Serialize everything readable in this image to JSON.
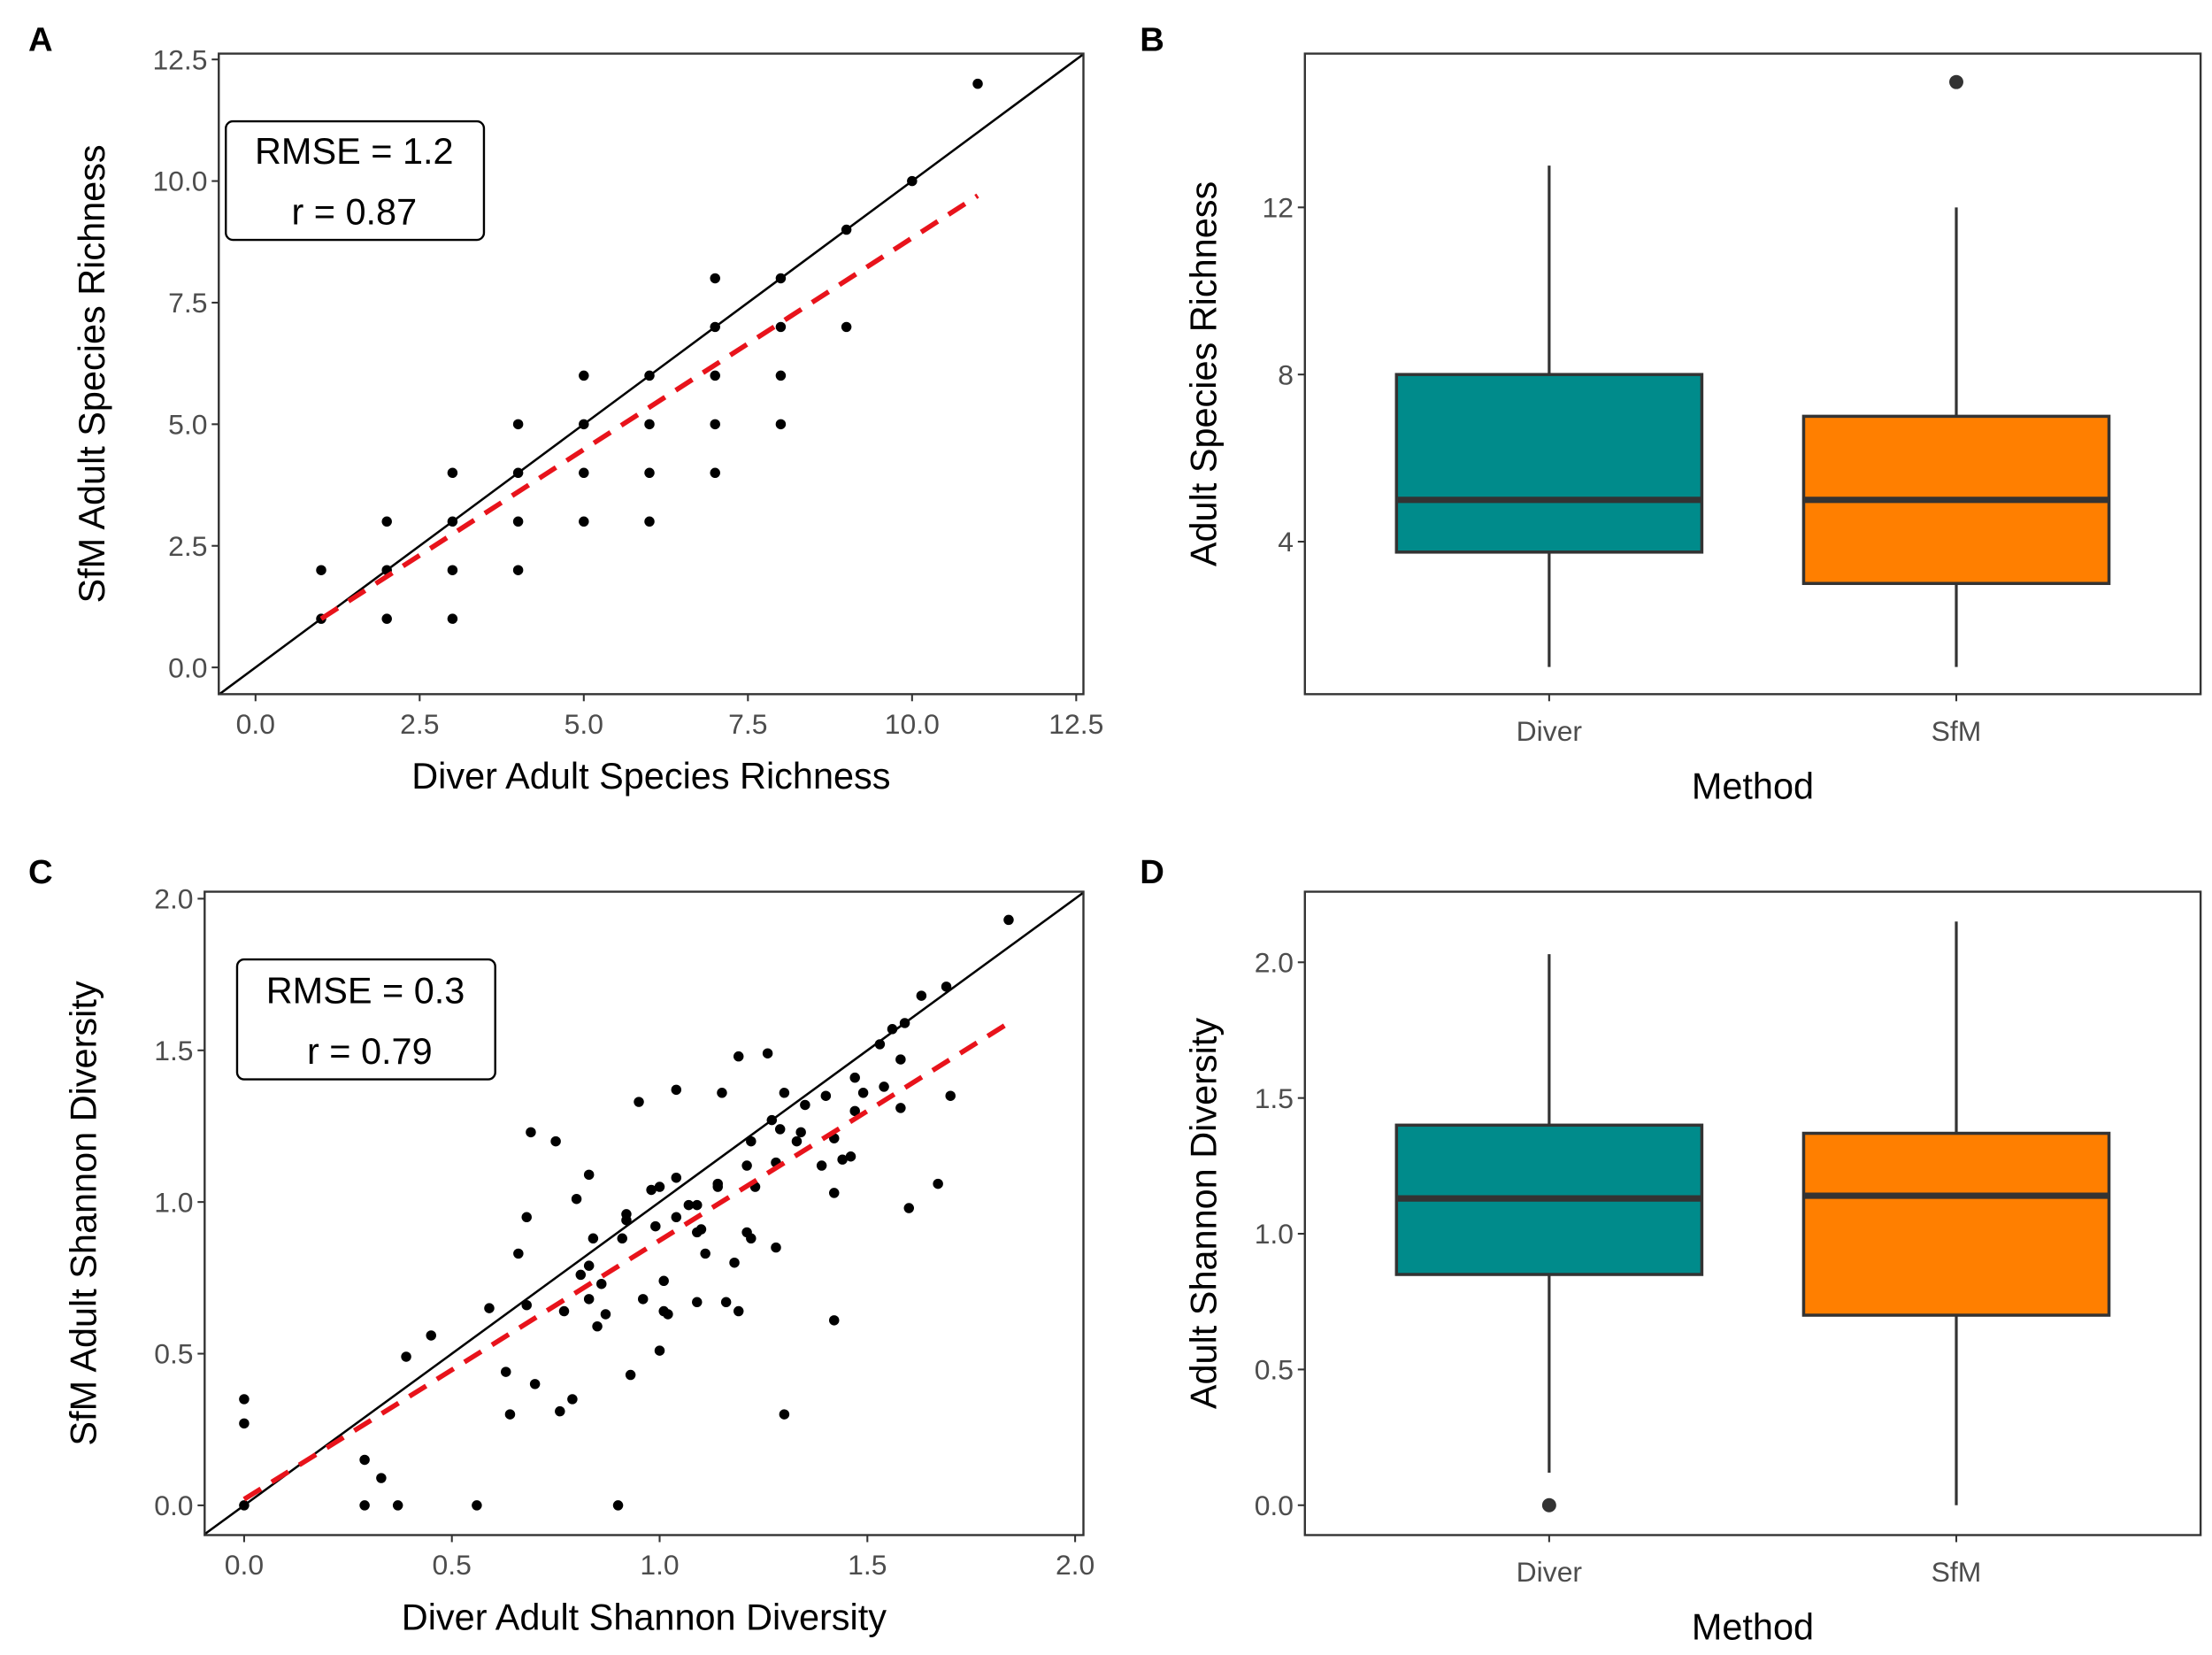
{
  "chart_data": [
    {
      "panel": "A",
      "type": "scatter",
      "xlabel": "Diver Adult Species Richness",
      "ylabel": "SfM Adult Species Richness",
      "xlim": [
        -0.56,
        12.61
      ],
      "ylim": [
        -0.55,
        12.62
      ],
      "xticks": [
        0,
        2.5,
        5,
        7.5,
        10,
        12.5
      ],
      "xtick_labels": [
        "0.0",
        "2.5",
        "5.0",
        "7.5",
        "10.0",
        "12.5"
      ],
      "yticks": [
        0,
        2.5,
        5,
        7.5,
        10,
        12.5
      ],
      "ytick_labels": [
        "0.0",
        "2.5",
        "5.0",
        "7.5",
        "10.0",
        "12.5"
      ],
      "annotation": [
        "RMSE = 1.2",
        "r = 0.87"
      ],
      "identity_line": true,
      "fit_line": {
        "x": [
          1,
          11
        ],
        "y": [
          1.0,
          9.7
        ],
        "color": "#e8131b",
        "style": "dashed"
      },
      "points": [
        [
          1,
          1
        ],
        [
          1,
          2
        ],
        [
          2,
          1
        ],
        [
          2,
          2
        ],
        [
          2,
          3
        ],
        [
          3,
          1
        ],
        [
          3,
          2
        ],
        [
          3,
          3
        ],
        [
          3,
          4
        ],
        [
          4,
          2
        ],
        [
          4,
          3
        ],
        [
          4,
          4
        ],
        [
          4,
          5
        ],
        [
          5,
          3
        ],
        [
          5,
          4
        ],
        [
          5,
          5
        ],
        [
          5,
          6
        ],
        [
          6,
          3
        ],
        [
          6,
          4
        ],
        [
          6,
          5
        ],
        [
          6,
          6
        ],
        [
          7,
          4
        ],
        [
          7,
          5
        ],
        [
          7,
          6
        ],
        [
          7,
          7
        ],
        [
          7,
          8
        ],
        [
          8,
          5
        ],
        [
          8,
          6
        ],
        [
          8,
          7
        ],
        [
          8,
          8
        ],
        [
          9,
          7
        ],
        [
          9,
          9
        ],
        [
          10,
          10
        ],
        [
          11,
          12
        ]
      ]
    },
    {
      "panel": "B",
      "type": "box",
      "xlabel": "Method",
      "ylabel": "Adult Species Richness",
      "ylim": [
        0.35,
        15.68
      ],
      "yticks": [
        4,
        8,
        12
      ],
      "ytick_labels": [
        "4",
        "8",
        "12"
      ],
      "categories": [
        "Diver",
        "SfM"
      ],
      "boxes": [
        {
          "name": "Diver",
          "min": 1,
          "q1": 3.75,
          "median": 5,
          "q3": 8,
          "max": 13,
          "outliers": [],
          "color": "#008b8b"
        },
        {
          "name": "SfM",
          "min": 1,
          "q1": 3,
          "median": 5,
          "q3": 7,
          "max": 12,
          "outliers": [
            15
          ],
          "color": "#ff7f00"
        }
      ]
    },
    {
      "panel": "C",
      "type": "scatter",
      "xlabel": "Diver Adult Shannon Diversity",
      "ylabel": "SfM Adult Shannon Diversity",
      "xlim": [
        -0.095,
        2.02
      ],
      "ylim": [
        -0.098,
        2.023
      ],
      "xticks": [
        0,
        0.5,
        1,
        1.5,
        2
      ],
      "xtick_labels": [
        "0.0",
        "0.5",
        "1.0",
        "1.5",
        "2.0"
      ],
      "yticks": [
        0,
        0.5,
        1,
        1.5,
        2
      ],
      "ytick_labels": [
        "0.0",
        "0.5",
        "1.0",
        "1.5",
        "2.0"
      ],
      "annotation": [
        "RMSE = 0.3",
        "r = 0.79"
      ],
      "identity_line": true,
      "fit_line": {
        "x": [
          0,
          1.84
        ],
        "y": [
          0.02,
          1.59
        ],
        "color": "#e8131b",
        "style": "dashed"
      },
      "points": [
        [
          0,
          0
        ],
        [
          0,
          0.35
        ],
        [
          0,
          0.27
        ],
        [
          0.29,
          0.15
        ],
        [
          0.33,
          0.09
        ],
        [
          0.29,
          0
        ],
        [
          0.37,
          0
        ],
        [
          0.56,
          0
        ],
        [
          0.9,
          0
        ],
        [
          0.39,
          0.49
        ],
        [
          0.45,
          0.56
        ],
        [
          0.59,
          0.65
        ],
        [
          0.63,
          0.44
        ],
        [
          0.64,
          0.3
        ],
        [
          0.66,
          0.83
        ],
        [
          0.68,
          0.66
        ],
        [
          0.68,
          0.95
        ],
        [
          0.69,
          1.23
        ],
        [
          0.7,
          0.4
        ],
        [
          0.75,
          1.2
        ],
        [
          0.76,
          0.31
        ],
        [
          0.77,
          0.64
        ],
        [
          0.79,
          0.35
        ],
        [
          0.8,
          1.01
        ],
        [
          0.81,
          0.76
        ],
        [
          0.83,
          1.09
        ],
        [
          0.83,
          0.79
        ],
        [
          0.83,
          0.68
        ],
        [
          0.84,
          0.88
        ],
        [
          0.85,
          0.59
        ],
        [
          0.86,
          0.73
        ],
        [
          0.87,
          0.63
        ],
        [
          0.91,
          0.88
        ],
        [
          0.92,
          0.94
        ],
        [
          0.92,
          0.96
        ],
        [
          0.93,
          0.43
        ],
        [
          0.95,
          1.33
        ],
        [
          0.96,
          0.68
        ],
        [
          0.98,
          1.04
        ],
        [
          0.99,
          0.92
        ],
        [
          1.0,
          1.05
        ],
        [
          1.0,
          0.51
        ],
        [
          1.01,
          0.64
        ],
        [
          1.01,
          0.74
        ],
        [
          1.02,
          0.63
        ],
        [
          1.04,
          1.08
        ],
        [
          1.04,
          0.95
        ],
        [
          1.04,
          1.37
        ],
        [
          1.07,
          0.99
        ],
        [
          1.09,
          0.99
        ],
        [
          1.09,
          0.9
        ],
        [
          1.09,
          0.67
        ],
        [
          1.1,
          0.91
        ],
        [
          1.11,
          0.83
        ],
        [
          1.14,
          1.05
        ],
        [
          1.14,
          1.06
        ],
        [
          1.15,
          1.36
        ],
        [
          1.16,
          0.67
        ],
        [
          1.18,
          0.8
        ],
        [
          1.19,
          0.64
        ],
        [
          1.19,
          1.48
        ],
        [
          1.21,
          0.9
        ],
        [
          1.21,
          1.12
        ],
        [
          1.22,
          1.2
        ],
        [
          1.22,
          0.88
        ],
        [
          1.23,
          1.05
        ],
        [
          1.26,
          1.49
        ],
        [
          1.27,
          1.27
        ],
        [
          1.28,
          1.13
        ],
        [
          1.28,
          0.85
        ],
        [
          1.29,
          1.24
        ],
        [
          1.3,
          1.36
        ],
        [
          1.3,
          0.3
        ],
        [
          1.33,
          1.2
        ],
        [
          1.34,
          1.23
        ],
        [
          1.35,
          1.32
        ],
        [
          1.39,
          1.12
        ],
        [
          1.4,
          1.35
        ],
        [
          1.42,
          1.03
        ],
        [
          1.42,
          1.21
        ],
        [
          1.42,
          0.61
        ],
        [
          1.44,
          1.14
        ],
        [
          1.46,
          1.15
        ],
        [
          1.47,
          1.3
        ],
        [
          1.47,
          1.41
        ],
        [
          1.49,
          1.36
        ],
        [
          1.53,
          1.52
        ],
        [
          1.54,
          1.38
        ],
        [
          1.56,
          1.57
        ],
        [
          1.58,
          1.31
        ],
        [
          1.58,
          1.47
        ],
        [
          1.59,
          1.59
        ],
        [
          1.6,
          0.98
        ],
        [
          1.63,
          1.68
        ],
        [
          1.67,
          1.06
        ],
        [
          1.69,
          1.71
        ],
        [
          1.7,
          1.35
        ],
        [
          1.84,
          1.93
        ]
      ]
    },
    {
      "panel": "D",
      "type": "box",
      "xlabel": "Method",
      "ylabel": "Adult Shannon Diversity",
      "ylim": [
        -0.11,
        2.26
      ],
      "yticks": [
        0,
        0.5,
        1,
        1.5,
        2
      ],
      "ytick_labels": [
        "0.0",
        "0.5",
        "1.0",
        "1.5",
        "2.0"
      ],
      "categories": [
        "Diver",
        "SfM"
      ],
      "boxes": [
        {
          "name": "Diver",
          "min": 0.12,
          "q1": 0.85,
          "median": 1.13,
          "q3": 1.4,
          "max": 2.03,
          "outliers": [
            0
          ],
          "color": "#008b8b"
        },
        {
          "name": "SfM",
          "min": 0,
          "q1": 0.7,
          "median": 1.14,
          "q3": 1.37,
          "max": 2.15,
          "outliers": [],
          "color": "#ff7f00"
        }
      ]
    }
  ]
}
